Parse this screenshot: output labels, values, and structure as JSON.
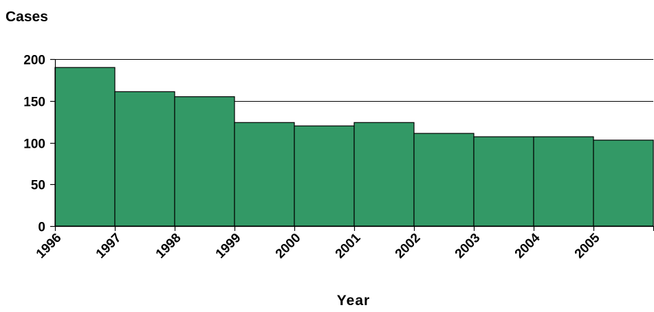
{
  "chart_data": {
    "type": "bar",
    "title": "",
    "ylabel": "Cases",
    "xlabel": "Year",
    "categories": [
      "1996",
      "1997",
      "1998",
      "1999",
      "2000",
      "2001",
      "2002",
      "2003",
      "2004",
      "2005"
    ],
    "values": [
      190,
      161,
      155,
      124,
      120,
      124,
      111,
      107,
      107,
      103
    ],
    "ylim": [
      0,
      200
    ],
    "yticks": [
      "0",
      "50",
      "100",
      "150",
      "200"
    ],
    "grid": true,
    "legend": "none",
    "colors": {
      "bar": "#339966",
      "bar_edge": "#000000",
      "grid": "#000000"
    }
  }
}
